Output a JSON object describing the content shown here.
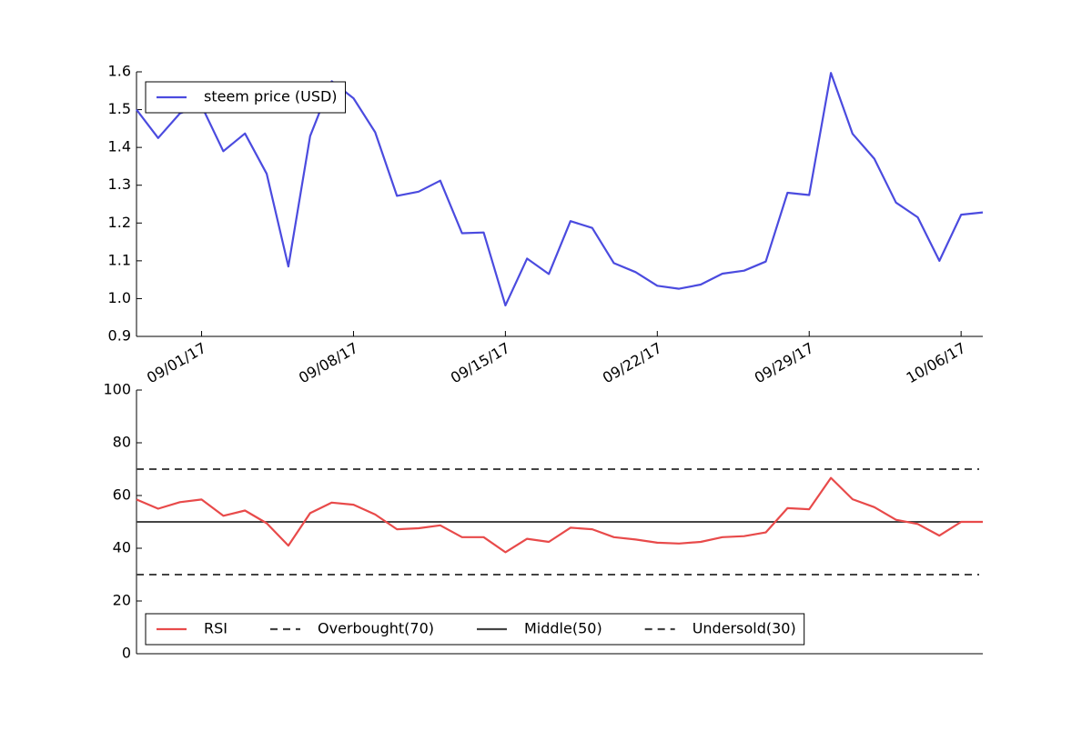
{
  "chart_data": [
    {
      "type": "line",
      "legend": "upper left",
      "x": [
        "2017-08-29",
        "2017-08-30",
        "2017-08-31",
        "2017-09-01",
        "2017-09-02",
        "2017-09-03",
        "2017-09-04",
        "2017-09-05",
        "2017-09-06",
        "2017-09-07",
        "2017-09-08",
        "2017-09-09",
        "2017-09-10",
        "2017-09-11",
        "2017-09-12",
        "2017-09-13",
        "2017-09-14",
        "2017-09-15",
        "2017-09-16",
        "2017-09-17",
        "2017-09-18",
        "2017-09-19",
        "2017-09-20",
        "2017-09-21",
        "2017-09-22",
        "2017-09-23",
        "2017-09-24",
        "2017-09-25",
        "2017-09-26",
        "2017-09-27",
        "2017-09-28",
        "2017-09-29",
        "2017-09-30",
        "2017-10-01",
        "2017-10-02",
        "2017-10-03",
        "2017-10-04",
        "2017-10-05",
        "2017-10-06",
        "2017-10-07"
      ],
      "series": [
        {
          "name": "steem price (USD)",
          "color": "#4b4bdf",
          "values": [
            1.5,
            1.425,
            1.49,
            1.51,
            1.39,
            1.437,
            1.33,
            1.085,
            1.43,
            1.575,
            1.53,
            1.44,
            1.272,
            1.283,
            1.312,
            1.173,
            1.175,
            0.982,
            1.106,
            1.065,
            1.205,
            1.187,
            1.094,
            1.07,
            1.034,
            1.026,
            1.037,
            1.066,
            1.074,
            1.098,
            1.28,
            1.274,
            1.597,
            1.436,
            1.37,
            1.254,
            1.215,
            1.1,
            1.222,
            1.228
          ]
        }
      ],
      "xlim": [
        "2017-08-29",
        "2017-10-07"
      ],
      "xticks": [
        {
          "value": "2017-09-01",
          "label": "09/01/17"
        },
        {
          "value": "2017-09-08",
          "label": "09/08/17"
        },
        {
          "value": "2017-09-15",
          "label": "09/15/17"
        },
        {
          "value": "2017-09-22",
          "label": "09/22/17"
        },
        {
          "value": "2017-09-29",
          "label": "09/29/17"
        },
        {
          "value": "2017-10-06",
          "label": "10/06/17"
        }
      ],
      "ylim": [
        0.9,
        1.6
      ],
      "yticks": [
        0.9,
        {
          "value": 1,
          "label": "1.0"
        },
        1.1,
        1.2,
        1.3,
        1.4,
        1.5,
        1.6
      ]
    },
    {
      "type": "line",
      "legend": "lower left",
      "x": [
        "2017-08-29",
        "2017-08-30",
        "2017-08-31",
        "2017-09-01",
        "2017-09-02",
        "2017-09-03",
        "2017-09-04",
        "2017-09-05",
        "2017-09-06",
        "2017-09-07",
        "2017-09-08",
        "2017-09-09",
        "2017-09-10",
        "2017-09-11",
        "2017-09-12",
        "2017-09-13",
        "2017-09-14",
        "2017-09-15",
        "2017-09-16",
        "2017-09-17",
        "2017-09-18",
        "2017-09-19",
        "2017-09-20",
        "2017-09-21",
        "2017-09-22",
        "2017-09-23",
        "2017-09-24",
        "2017-09-25",
        "2017-09-26",
        "2017-09-27",
        "2017-09-28",
        "2017-09-29",
        "2017-09-30",
        "2017-10-01",
        "2017-10-02",
        "2017-10-03",
        "2017-10-04",
        "2017-10-05",
        "2017-10-06",
        "2017-10-07"
      ],
      "series": [
        {
          "name": "RSI",
          "color": "#e84a4a",
          "values": [
            58.5,
            55,
            57.5,
            58.5,
            52.3,
            54.3,
            49.5,
            41,
            53.3,
            57.3,
            56.5,
            52.8,
            47.2,
            47.6,
            48.7,
            44.2,
            44.2,
            38.5,
            43.6,
            42.4,
            47.8,
            47.2,
            44.2,
            43.3,
            42.1,
            41.8,
            42.4,
            44.2,
            44.6,
            46,
            55.2,
            54.8,
            66.7,
            58.6,
            55.6,
            50.8,
            49.2,
            44.8,
            50,
            50
          ]
        }
      ],
      "hlines": [
        {
          "name": "Overbought(70)",
          "value": 70,
          "style": "dashed",
          "color": "#444444"
        },
        {
          "name": "Middle(50)",
          "value": 50,
          "style": "solid",
          "color": "#444444"
        },
        {
          "name": "Undersold(30)",
          "value": 30,
          "style": "dashed",
          "color": "#444444"
        }
      ],
      "xlim": [
        "2017-08-29",
        "2017-10-07"
      ],
      "ylim": [
        0,
        100
      ],
      "yticks": [
        0,
        20,
        40,
        60,
        80,
        100
      ]
    }
  ]
}
